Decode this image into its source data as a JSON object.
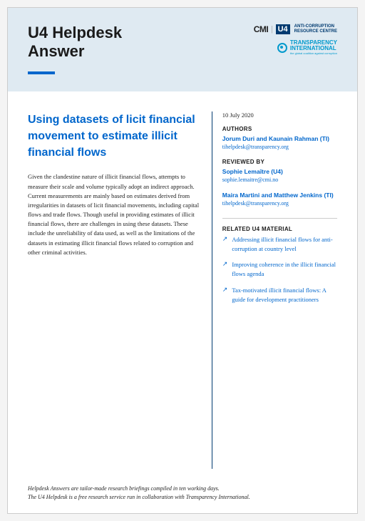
{
  "header": {
    "doc_type_line1": "U4 Helpdesk",
    "doc_type_line2": "Answer",
    "logos": {
      "cmi": "CMI",
      "u4": "U4",
      "acrc_line1": "ANTI-CORRUPTION",
      "acrc_line2": "RESOURCE CENTRE",
      "ti_line1": "TRANSPARENCY",
      "ti_line2": "INTERNATIONAL",
      "ti_tagline": "the global coalition against corruption"
    }
  },
  "main": {
    "title": "Using datasets of licit financial movement to estimate illicit financial flows",
    "summary": "Given the clandestine nature of illicit financial flows, attempts to measure their scale and volume typically adopt an indirect approach. Current measurements are mainly based on estimates derived from irregularities in datasets of licit financial movements, including capital flows and trade flows. Though useful in providing estimates of illicit financial flows, there are challenges in using these datasets. These include the unreliability of data used, as well as the limitations of the datasets in estimating illicit financial flows related to corruption and other criminal activities."
  },
  "side": {
    "date": "10 July 2020",
    "authors_label": "AUTHORS",
    "authors_name": "Jorum Duri and Kaunain Rahman (TI)",
    "authors_email": "tihelpdesk@transparency.org",
    "reviewed_label": "REVIEWED BY",
    "reviewer1_name": "Sophie Lemaître (U4)",
    "reviewer1_email": "sophie.lemaitre@cmi.no",
    "reviewer2_name": "Maira Martini and Matthew Jenkins (TI)",
    "reviewer2_email": "tihelpdesk@transparency.org",
    "related_label": "RELATED U4 MATERIAL",
    "related": [
      "Addressing illicit financial flows for anti-corruption at country level",
      "Improving coherence in the illicit financial flows agenda",
      "Tax-motivated illicit financial flows: A guide for development practitioners"
    ]
  },
  "footer": {
    "line1": "Helpdesk Answers are tailor-made research briefings compiled in ten working days.",
    "line2": "The U4 Helpdesk is a free research service run in collaboration with Transparency International."
  },
  "colors": {
    "header_bg": "#dfeaf2",
    "accent_blue": "#0066cc",
    "u4_navy": "#003a70",
    "ti_blue": "#0099cc"
  }
}
